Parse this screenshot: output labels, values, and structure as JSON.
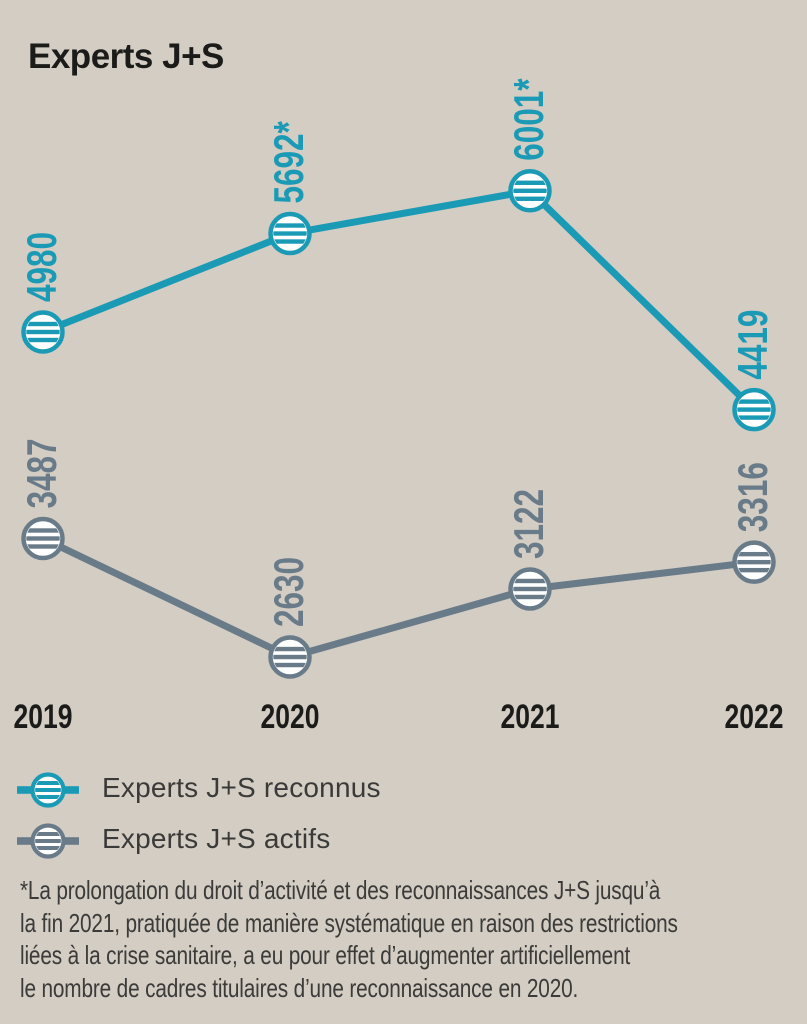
{
  "title": "Experts J+S",
  "colors": {
    "background": "#d3cdc4",
    "accent_teal": "#1b9ab6",
    "accent_gray": "#697b89",
    "text_dark": "#1b1b19",
    "text_body": "#3b3b39"
  },
  "chart_data": {
    "type": "line",
    "title": "Experts J+S",
    "categories": [
      "2019",
      "2020",
      "2021",
      "2022"
    ],
    "series": [
      {
        "name": "Experts J+S reconnus",
        "color": "#1b9ab6",
        "values": [
          4980,
          5692,
          6001,
          4419
        ],
        "point_labels": [
          "4980",
          "5692*",
          "6001*",
          "4419"
        ]
      },
      {
        "name": "Experts J+S actifs",
        "color": "#697b89",
        "values": [
          3487,
          2630,
          3122,
          3316
        ],
        "point_labels": [
          "3487",
          "2630",
          "3122",
          "3316"
        ]
      }
    ],
    "ylim": [
      2300,
      6300
    ],
    "xlabel": "",
    "ylabel": "",
    "grid": false,
    "legend_position": "bottom-left",
    "marker_style": "striped-circle",
    "point_label_rotation": -90
  },
  "legend": {
    "items": [
      {
        "label": "Experts J+S reconnus"
      },
      {
        "label": "Experts J+S actifs"
      }
    ]
  },
  "footnote": {
    "lines": [
      "*La prolongation du droit d’activité et des reconnaissances J+S jusqu’à",
      "la fin 2021, pratiquée de manière systématique en raison des restrictions",
      "liées à la crise sanitaire, a eu pour effet d’augmenter artificiellement",
      "le nombre de cadres titulaires d’une reconnaissance en 2020."
    ]
  }
}
